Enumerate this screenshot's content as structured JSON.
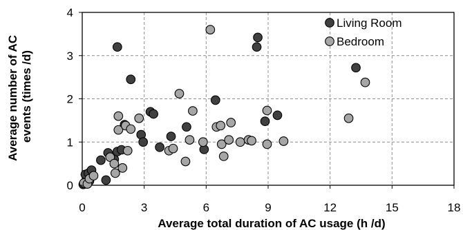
{
  "chart_data": {
    "type": "scatter",
    "title": "",
    "xlabel": "Average total duration of AC usage (h /d)",
    "ylabel": "Average number of AC events (times /d)",
    "xlim": [
      0,
      18
    ],
    "ylim": [
      0,
      4
    ],
    "xticks": [
      0,
      3,
      6,
      9,
      12,
      15,
      18
    ],
    "yticks": [
      0,
      1,
      2,
      3,
      4
    ],
    "grid": true,
    "legend_position": "top-right",
    "series": [
      {
        "name": "Living Room",
        "color": "#404040",
        "points": [
          [
            0.05,
            0.02
          ],
          [
            0.15,
            0.25
          ],
          [
            0.3,
            0.28
          ],
          [
            0.45,
            0.35
          ],
          [
            0.35,
            0.1
          ],
          [
            0.9,
            0.58
          ],
          [
            1.15,
            0.12
          ],
          [
            1.25,
            0.75
          ],
          [
            1.55,
            0.6
          ],
          [
            1.7,
            0.78
          ],
          [
            1.9,
            0.82
          ],
          [
            1.7,
            3.2
          ],
          [
            2.05,
            1.4
          ],
          [
            2.35,
            2.45
          ],
          [
            2.85,
            1.17
          ],
          [
            2.95,
            1.0
          ],
          [
            3.3,
            1.7
          ],
          [
            3.45,
            1.65
          ],
          [
            3.75,
            0.88
          ],
          [
            4.3,
            1.13
          ],
          [
            5.05,
            1.35
          ],
          [
            5.9,
            0.83
          ],
          [
            6.45,
            1.97
          ],
          [
            8.45,
            3.2
          ],
          [
            8.5,
            3.42
          ],
          [
            8.85,
            1.48
          ],
          [
            9.45,
            1.62
          ],
          [
            13.25,
            2.72
          ]
        ]
      },
      {
        "name": "Bedroom",
        "color": "#a6a6a6",
        "points": [
          [
            0.08,
            0.05
          ],
          [
            0.25,
            0.03
          ],
          [
            0.35,
            0.15
          ],
          [
            0.55,
            0.22
          ],
          [
            1.35,
            0.65
          ],
          [
            1.55,
            0.5
          ],
          [
            1.6,
            0.28
          ],
          [
            1.75,
            1.6
          ],
          [
            1.75,
            1.28
          ],
          [
            1.95,
            0.4
          ],
          [
            2.1,
            1.38
          ],
          [
            2.2,
            0.8
          ],
          [
            2.35,
            1.3
          ],
          [
            2.75,
            1.55
          ],
          [
            4.2,
            0.8
          ],
          [
            4.4,
            0.85
          ],
          [
            4.7,
            2.12
          ],
          [
            5.0,
            0.55
          ],
          [
            5.2,
            1.05
          ],
          [
            5.35,
            1.72
          ],
          [
            5.85,
            1.0
          ],
          [
            6.2,
            3.6
          ],
          [
            6.5,
            1.35
          ],
          [
            6.7,
            1.38
          ],
          [
            6.75,
            0.95
          ],
          [
            6.85,
            0.67
          ],
          [
            7.1,
            1.05
          ],
          [
            7.2,
            1.45
          ],
          [
            7.65,
            1.0
          ],
          [
            8.05,
            1.05
          ],
          [
            8.2,
            1.03
          ],
          [
            8.95,
            1.73
          ],
          [
            8.95,
            0.95
          ],
          [
            9.75,
            1.02
          ],
          [
            12.9,
            1.55
          ],
          [
            13.7,
            2.38
          ]
        ]
      }
    ]
  }
}
